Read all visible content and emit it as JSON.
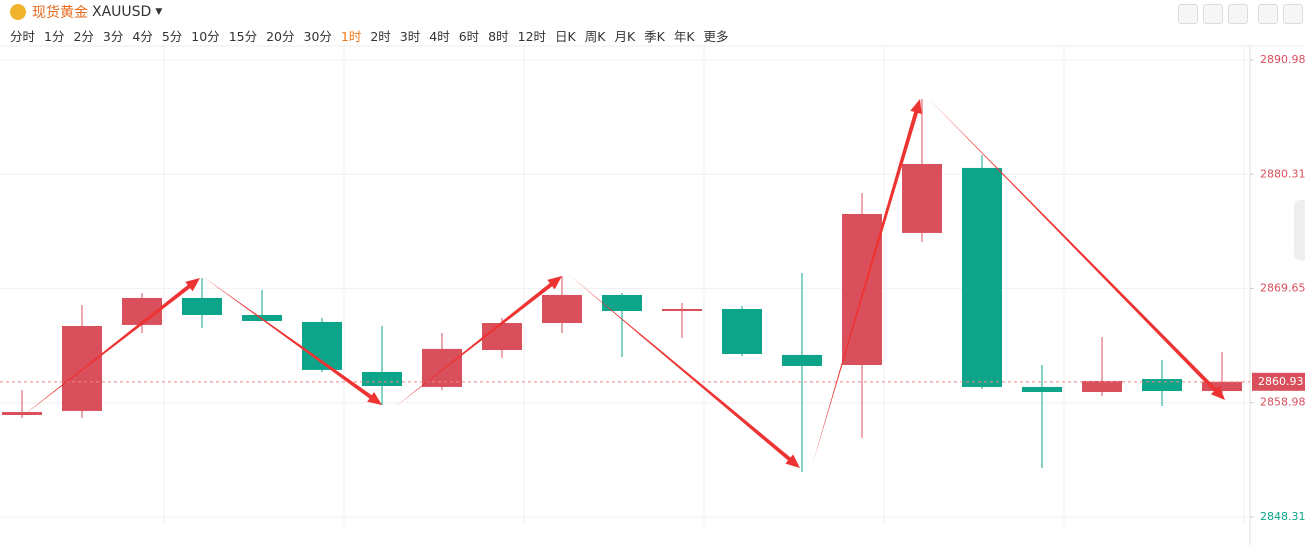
{
  "header": {
    "name": "现货黄金",
    "symbol": "XAUUSD"
  },
  "toolbar": {
    "intervals": [
      "分时",
      "1分",
      "2分",
      "3分",
      "4分",
      "5分",
      "10分",
      "15分",
      "20分",
      "30分",
      "1时",
      "2时",
      "3时",
      "4时",
      "6时",
      "8时",
      "12时",
      "日K",
      "周K",
      "月K",
      "季K",
      "年K",
      "更多"
    ],
    "active_interval": 10
  },
  "chart_data": {
    "type": "candlestick",
    "open": [
      2857.83,
      2858.21,
      2866.24,
      2868.76,
      2867.17,
      2866.52,
      2861.85,
      2860.45,
      2863.9,
      2866.42,
      2869.04,
      2867.54,
      2867.73,
      2863.44,
      2862.5,
      2874.83,
      2880.9,
      2860.45,
      2859.98,
      2861.19,
      2860.07
    ],
    "high": [
      2860.17,
      2868.1,
      2869.22,
      2870.62,
      2869.5,
      2866.89,
      2866.14,
      2865.49,
      2866.89,
      2870.81,
      2869.22,
      2868.29,
      2868.01,
      2871.09,
      2878.56,
      2887.34,
      2882.11,
      2862.5,
      2865.12,
      2862.97,
      2863.72
    ],
    "low": [
      2857.55,
      2857.55,
      2865.49,
      2865.96,
      2866.61,
      2861.85,
      2858.77,
      2860.17,
      2863.16,
      2865.49,
      2863.25,
      2865.02,
      2863.34,
      2852.51,
      2855.69,
      2873.99,
      2860.26,
      2852.88,
      2859.61,
      2858.67,
      2859.89
    ],
    "close": [
      2858.11,
      2866.14,
      2868.76,
      2867.17,
      2866.61,
      2862.04,
      2860.54,
      2864.0,
      2866.42,
      2869.04,
      2867.54,
      2867.73,
      2863.53,
      2862.41,
      2876.6,
      2881.27,
      2860.45,
      2859.98,
      2861.01,
      2860.07,
      2860.93
    ],
    "up_color": "#d9505c",
    "down_color": "#0ca58a",
    "ylim": [
      2847.56,
      2892.38
    ],
    "yticks": [
      2848.31,
      2858.98,
      2869.65,
      2880.31,
      2890.98
    ],
    "current_price": 2860.93,
    "grid": true
  }
}
